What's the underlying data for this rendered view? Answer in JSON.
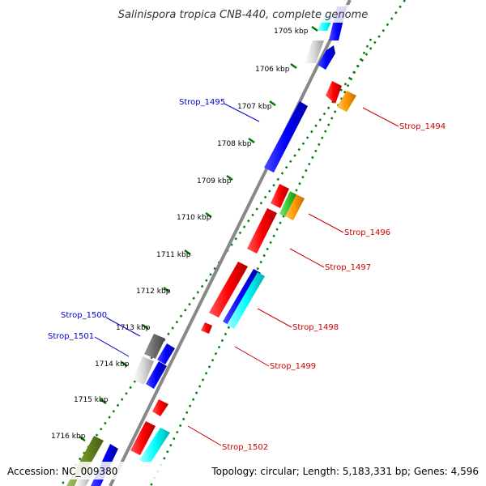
{
  "title": "Salinispora tropica CNB-440, complete genome",
  "footer": {
    "accession": "Accession: NC_009380",
    "topology": "Topology: circular; Length: 5,183,331 bp; Genes: 4,596"
  },
  "ruler_labels": [
    "1705 kbp",
    "1706 kbp",
    "1707 kbp",
    "1708 kbp",
    "1709 kbp",
    "1710 kbp",
    "1711 kbp",
    "1712 kbp",
    "1713 kbp",
    "1714 kbp",
    "1715 kbp",
    "1716 kbp"
  ],
  "gene_labels": {
    "strop_1494": "Strop_1494",
    "strop_1495": "Strop_1495",
    "strop_1496": "Strop_1496",
    "strop_1497": "Strop_1497",
    "strop_1498": "Strop_1498",
    "strop_1499": "Strop_1499",
    "strop_1500": "Strop_1500",
    "strop_1501": "Strop_1501",
    "strop_1502": "Strop_1502"
  },
  "colors": {
    "forward_label": "#0000cc",
    "reverse_label": "#cc0000",
    "backbone": "#808080",
    "ruler_dots": "#007a00",
    "red_gene": "#ff0000",
    "blue_gene": "#0000ff",
    "cyan_gene": "#00ffff",
    "orange_gene": "#ff9900",
    "green_gene": "#33cc33",
    "gray_gene": "#a0a0a0",
    "olive_gene": "#6b8e23"
  }
}
